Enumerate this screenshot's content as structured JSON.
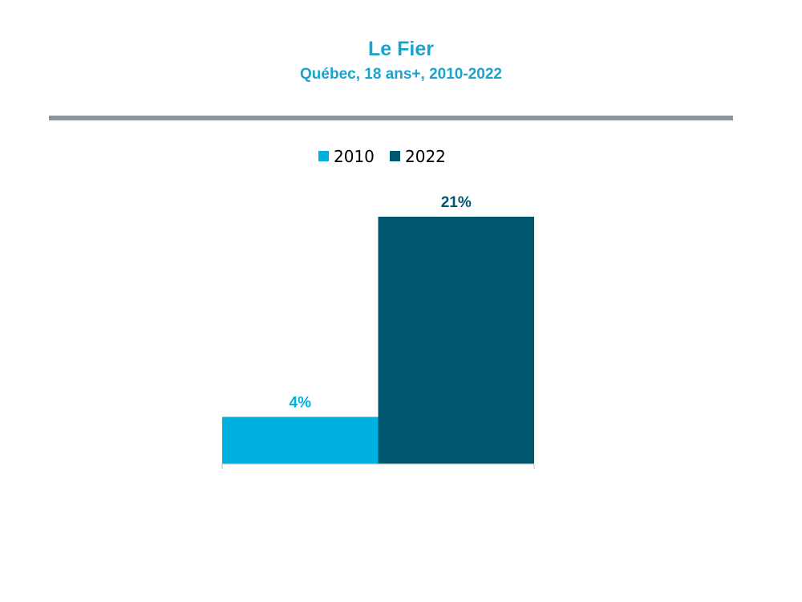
{
  "title": "Le Fier",
  "subtitle": "Québec, 18 ans+, 2010-2022",
  "colors": {
    "title": "#1AA3CC",
    "rule": "#8C959C",
    "axis": "#BFBFBF"
  },
  "chart_data": {
    "type": "bar",
    "title": "Le Fier",
    "subtitle": "Québec, 18 ans+, 2010-2022",
    "categories": [
      ""
    ],
    "series": [
      {
        "name": "2010",
        "values": [
          4
        ],
        "color": "#00B0DF",
        "label": "4%"
      },
      {
        "name": "2022",
        "values": [
          21
        ],
        "color": "#00586E",
        "label": "21%"
      }
    ],
    "ylim": [
      0,
      21
    ],
    "unit": "%",
    "grid": false,
    "legend_position": "top-center",
    "y_axis_visible": false
  }
}
